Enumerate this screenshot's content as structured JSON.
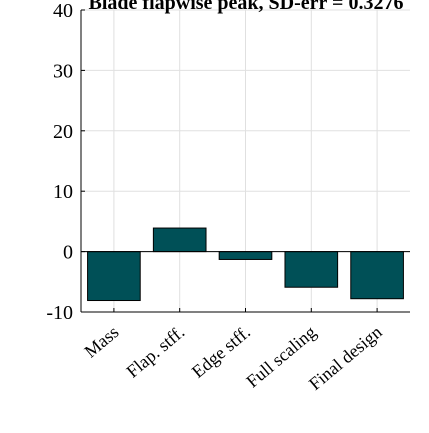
{
  "chart_data": {
    "type": "bar",
    "title": "Blade flapwise peak, SD-err = 0.3276",
    "xlabel": "",
    "ylabel": "",
    "categories": [
      "Mass",
      "Flap. stff.",
      "Edge stff.",
      "Full scaling",
      "Final design"
    ],
    "values": [
      -8.1,
      3.9,
      -1.3,
      -5.9,
      -7.8
    ],
    "ylim": [
      -10,
      40
    ],
    "yticks": [
      -10,
      0,
      10,
      20,
      30,
      40
    ],
    "grid": true,
    "legend": "none",
    "colors": {
      "bar": "#005057",
      "bar_edge": "#000000",
      "grid": "#e0e0e0",
      "axis": "#000000",
      "zero_line": "#000000"
    }
  }
}
